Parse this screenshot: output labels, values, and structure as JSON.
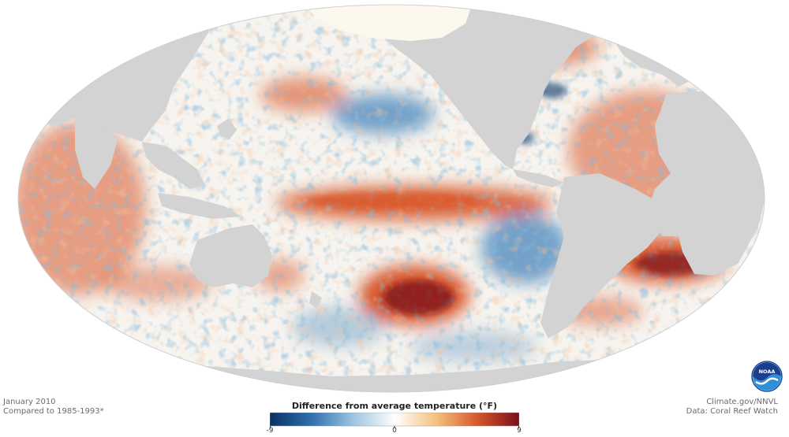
{
  "map": {
    "projection": "Mollweide",
    "land_color": "#d3d3d3",
    "ice_color": "#fcf8ee",
    "ocean_base_color": "#f7f4ef",
    "warm_color": "#d9572a",
    "cool_color": "#3a7db8"
  },
  "caption_left": {
    "line1": "January 2010",
    "line2": "Compared to 1985-1993*"
  },
  "caption_right": {
    "line1": "Climate.gov/NNVL",
    "line2": "Data: Coral Reef Watch"
  },
  "legend": {
    "title": "Difference from average temperature (°F)",
    "ticks": [
      "-9",
      "0",
      "9"
    ],
    "min": -9,
    "max": 9,
    "colors": [
      "#0a2f63",
      "#2f6fae",
      "#9cc4e0",
      "#ffffff",
      "#f6c27e",
      "#d5572c",
      "#7a0d1c"
    ]
  },
  "logo": {
    "text": "NOAA",
    "icon": "noaa-logo-icon"
  }
}
